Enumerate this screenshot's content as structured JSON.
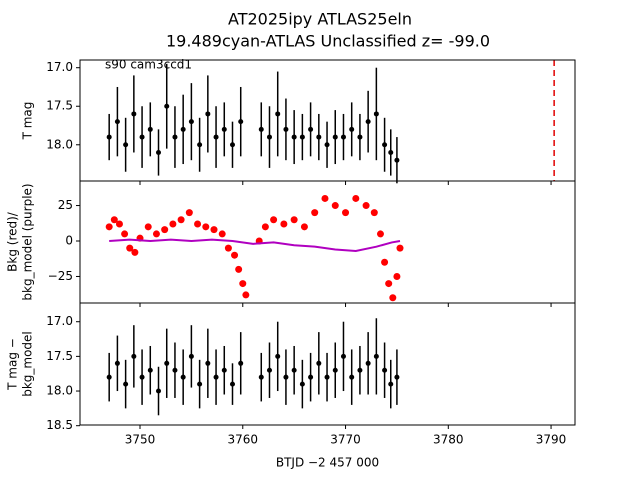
{
  "chart_data": [
    {
      "type": "errorbar",
      "title": "AT2025ipy  ATLAS25eln",
      "subtitle": "19.489cyan-ATLAS Unclassified z= -99.0",
      "annotation": "s90 cam3ccd1",
      "ylabel": [
        "T mag"
      ],
      "xlim": [
        3744.16,
        3792.33
      ],
      "xticks": [
        3750,
        3760,
        3770,
        3780,
        3790
      ],
      "ylim": [
        18.47,
        16.9
      ],
      "yticks": [
        {
          "value": 17,
          "label": "17.0"
        },
        {
          "value": 17.5,
          "label": "17.5"
        },
        {
          "value": 18,
          "label": "18.0"
        }
      ],
      "vline": 3790.3,
      "vline_color": "#e00000",
      "series": [
        {
          "color": "#000000",
          "x": [
            3747.0,
            3747.8,
            3748.6,
            3749.4,
            3750.2,
            3751.0,
            3751.8,
            3752.6,
            3753.4,
            3754.2,
            3755.0,
            3755.8,
            3756.6,
            3757.4,
            3758.2,
            3759.0,
            3759.8,
            3761.8,
            3762.6,
            3763.4,
            3764.2,
            3765.0,
            3765.8,
            3766.6,
            3767.4,
            3768.2,
            3769.0,
            3769.8,
            3770.6,
            3771.4,
            3772.2,
            3773.0,
            3773.8,
            3774.4,
            3775.0
          ],
          "values": [
            17.9,
            17.7,
            18.0,
            17.6,
            17.9,
            17.8,
            18.1,
            17.5,
            17.9,
            17.8,
            17.7,
            18.0,
            17.6,
            17.9,
            17.8,
            18.0,
            17.7,
            17.8,
            17.9,
            17.6,
            17.8,
            17.9,
            17.9,
            17.8,
            17.9,
            18.0,
            17.9,
            17.9,
            17.8,
            17.9,
            17.7,
            17.6,
            18.0,
            18.1,
            18.2
          ],
          "errors": [
            0.3,
            0.45,
            0.35,
            0.5,
            0.4,
            0.35,
            0.3,
            0.55,
            0.4,
            0.45,
            0.5,
            0.35,
            0.5,
            0.4,
            0.35,
            0.3,
            0.45,
            0.35,
            0.4,
            0.55,
            0.4,
            0.35,
            0.3,
            0.35,
            0.3,
            0.3,
            0.35,
            0.3,
            0.35,
            0.3,
            0.4,
            0.6,
            0.35,
            0.3,
            0.3
          ]
        }
      ]
    },
    {
      "type": "scatter",
      "ylabel": [
        "Bkg (red)/",
        "bkg_model (purple)"
      ],
      "xlim": [
        3744.16,
        3792.33
      ],
      "xticks": [
        3750,
        3760,
        3770,
        3780,
        3790
      ],
      "ylim": [
        -43.7,
        42.3
      ],
      "yticks": [
        25,
        0,
        {
          "value": -25,
          "label": "−25"
        }
      ],
      "series": [
        {
          "color": "#ff0000",
          "kind": "dots",
          "x": [
            3747.0,
            3747.5,
            3748.0,
            3748.5,
            3749.0,
            3749.5,
            3750.0,
            3750.8,
            3751.6,
            3752.4,
            3753.2,
            3754.0,
            3754.8,
            3755.6,
            3756.4,
            3757.2,
            3758.0,
            3758.6,
            3759.2,
            3759.6,
            3760.0,
            3760.3,
            3761.6,
            3762.2,
            3763.0,
            3764.0,
            3765.0,
            3766.0,
            3767.0,
            3768.0,
            3769.0,
            3770.0,
            3771.0,
            3772.0,
            3772.8,
            3773.4,
            3773.8,
            3774.2,
            3774.6,
            3775.0,
            3775.3
          ],
          "values": [
            10,
            15,
            12,
            5,
            -5,
            -8,
            2,
            10,
            5,
            8,
            12,
            15,
            20,
            12,
            10,
            8,
            5,
            -5,
            -10,
            -20,
            -30,
            -38,
            0,
            10,
            15,
            12,
            15,
            10,
            20,
            30,
            25,
            20,
            30,
            25,
            20,
            5,
            -15,
            -30,
            -40,
            -25,
            -5
          ]
        },
        {
          "color": "#b000c0",
          "kind": "line",
          "x": [
            3747.0,
            3749.0,
            3751.0,
            3753.0,
            3755.0,
            3757.0,
            3759.0,
            3761.0,
            3763.0,
            3765.0,
            3767.0,
            3769.0,
            3771.0,
            3773.0,
            3774.5,
            3775.3
          ],
          "values": [
            0,
            1,
            0,
            1,
            0,
            1,
            0,
            -2,
            -1,
            -3,
            -4,
            -6,
            -7,
            -4,
            -1,
            0
          ]
        }
      ]
    },
    {
      "type": "errorbar",
      "ylabel": [
        "T mag −",
        "bkg_model"
      ],
      "xlabel": "BTJD −2 457 000",
      "xlim": [
        3744.16,
        3792.33
      ],
      "xticks": [
        3750,
        3760,
        3770,
        3780,
        3790
      ],
      "ylim": [
        18.49,
        16.73
      ],
      "yticks": [
        {
          "value": 17,
          "label": "17.0"
        },
        {
          "value": 17.5,
          "label": "17.5"
        },
        {
          "value": 18,
          "label": "18.0"
        },
        {
          "value": 18.5,
          "label": "18.5"
        }
      ],
      "series": [
        {
          "color": "#000000",
          "x": [
            3747.0,
            3747.8,
            3748.6,
            3749.4,
            3750.2,
            3751.0,
            3751.8,
            3752.6,
            3753.4,
            3754.2,
            3755.0,
            3755.8,
            3756.6,
            3757.4,
            3758.2,
            3759.0,
            3759.8,
            3761.8,
            3762.6,
            3763.4,
            3764.2,
            3765.0,
            3765.8,
            3766.6,
            3767.4,
            3768.2,
            3769.0,
            3769.8,
            3770.6,
            3771.4,
            3772.2,
            3773.0,
            3773.8,
            3774.4,
            3775.0
          ],
          "values": [
            17.8,
            17.6,
            17.9,
            17.5,
            17.8,
            17.7,
            18.0,
            17.6,
            17.7,
            17.8,
            17.5,
            17.9,
            17.6,
            17.8,
            17.7,
            17.9,
            17.6,
            17.8,
            17.7,
            17.5,
            17.8,
            17.7,
            17.9,
            17.8,
            17.6,
            17.8,
            17.7,
            17.5,
            17.8,
            17.7,
            17.6,
            17.5,
            17.7,
            17.9,
            17.8
          ],
          "errors": [
            0.35,
            0.4,
            0.35,
            0.45,
            0.4,
            0.35,
            0.35,
            0.5,
            0.4,
            0.4,
            0.45,
            0.35,
            0.5,
            0.4,
            0.35,
            0.3,
            0.45,
            0.35,
            0.4,
            0.5,
            0.4,
            0.35,
            0.35,
            0.35,
            0.45,
            0.35,
            0.4,
            0.5,
            0.4,
            0.35,
            0.45,
            0.55,
            0.4,
            0.35,
            0.4
          ]
        }
      ]
    }
  ]
}
